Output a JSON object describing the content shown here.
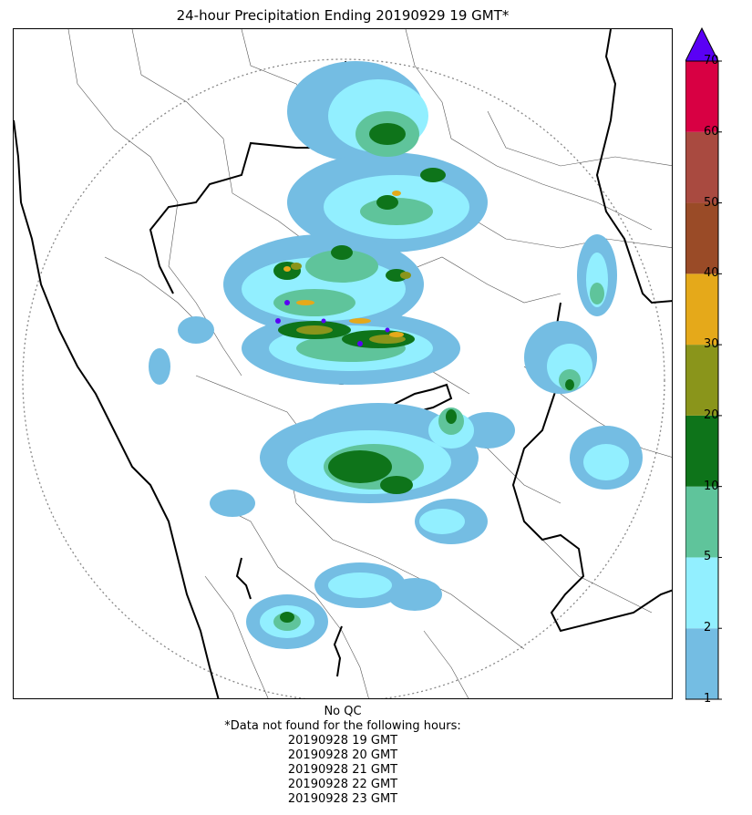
{
  "title": "24-hour Precipitation Ending 20190929 19 GMT*",
  "colorbar": {
    "ticks": [
      "1",
      "2",
      "5",
      "10",
      "20",
      "30",
      "40",
      "50",
      "60",
      "70"
    ],
    "colors": [
      "#74bde3",
      "#92efff",
      "#5fc49b",
      "#0e741a",
      "#8a951b",
      "#e5a91a",
      "#9a4b27",
      "#a94a40",
      "#d80043"
    ],
    "extend_color": "#5a00f5"
  },
  "footer": {
    "qc": "No QC",
    "note": "*Data not found for the following hours:",
    "hours": [
      "20190928 19 GMT",
      "20190928 20 GMT",
      "20190928 21 GMT",
      "20190928 22 GMT",
      "20190928 23 GMT"
    ]
  },
  "legend_colors": {
    "light_blue": "#74bde3",
    "cyan": "#92efff",
    "seagreen": "#5fc49b",
    "darkgreen": "#0e741a",
    "olive": "#8a951b",
    "orange": "#e5a91a",
    "purple": "#5a00f5"
  }
}
